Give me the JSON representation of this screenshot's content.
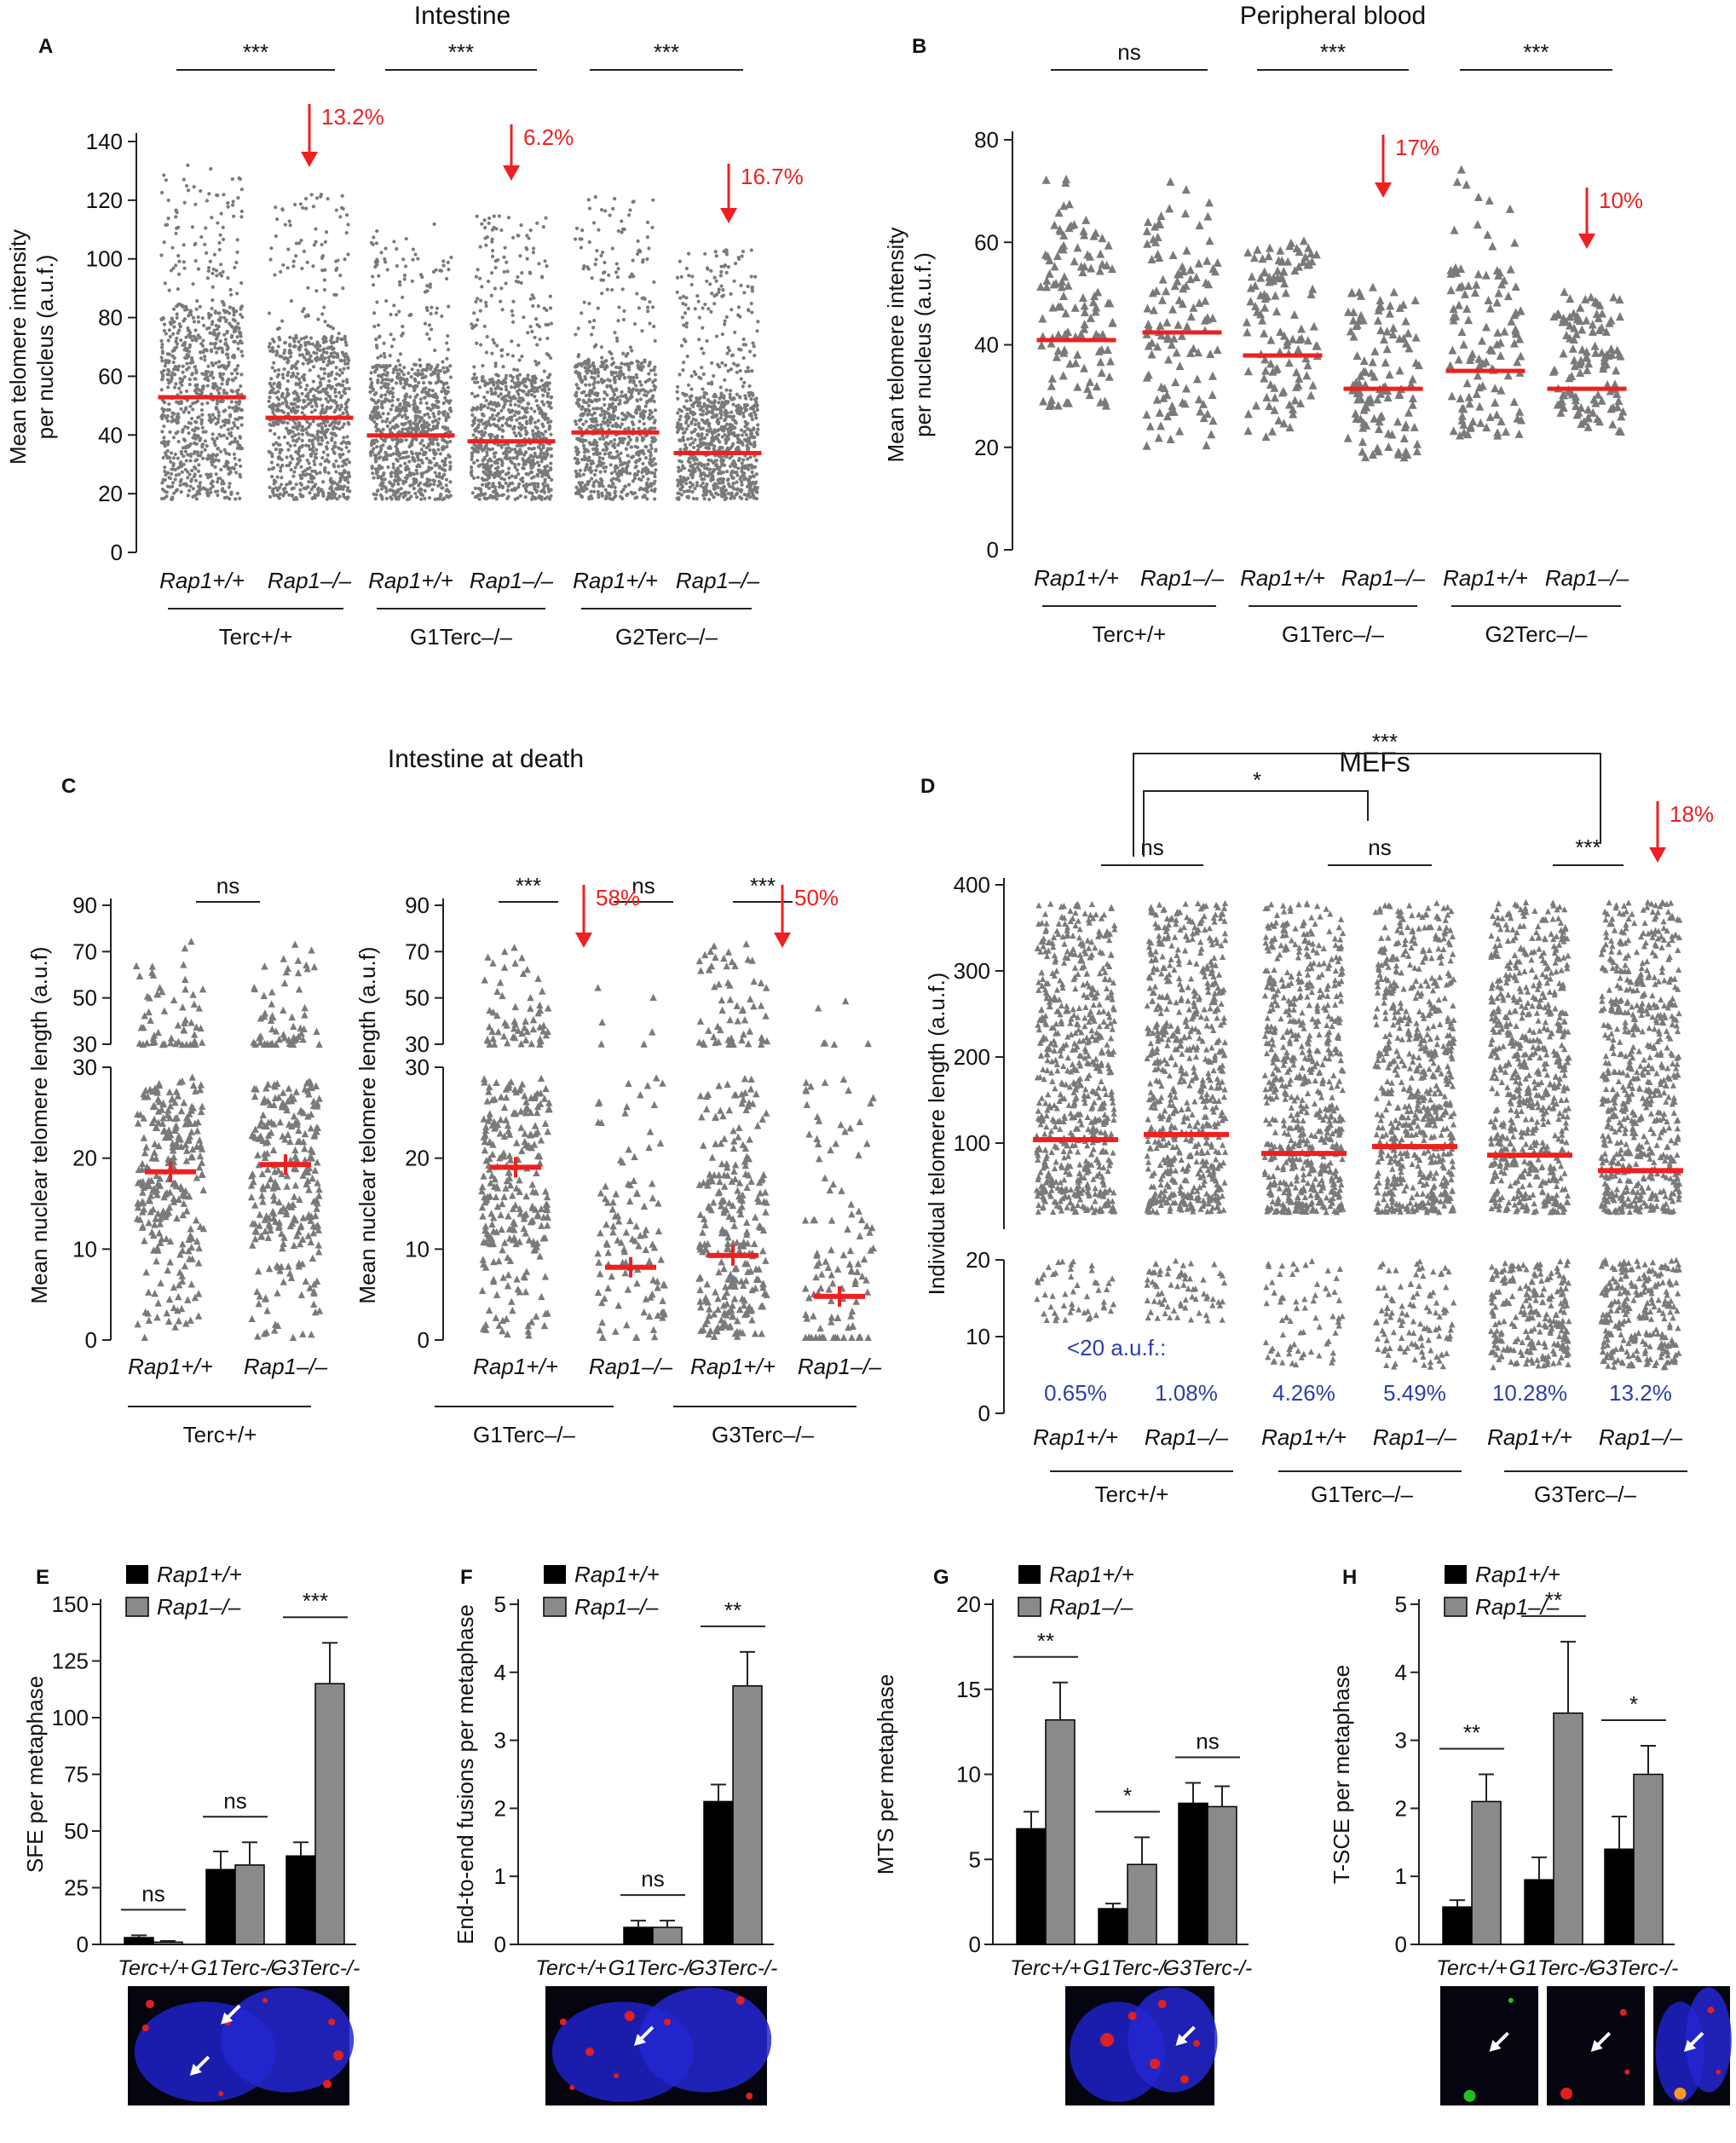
{
  "colors": {
    "dot": "#7a7a7a",
    "red": "#ee2020",
    "black": "#000000",
    "gray": "#8a8a8a",
    "blue": "#2a3fa8",
    "axis": "#222222"
  },
  "chart_data": [
    {
      "id": "A",
      "type": "scatter",
      "title": "Intestine",
      "ylabel": "Mean telomere intensity per nucleus (a.u.f.)",
      "ylim": [
        0,
        140
      ],
      "yticks": [
        0,
        20,
        40,
        60,
        80,
        100,
        120,
        140
      ],
      "categories": [
        "Rap1+/+",
        "Rap1–/–",
        "Rap1+/+",
        "Rap1–/–",
        "Rap1+/+",
        "Rap1–/–"
      ],
      "groups": [
        "Terc+/+",
        "G1Terc–/–",
        "G2Terc–/–"
      ],
      "means": [
        53,
        46,
        40,
        38,
        41,
        34
      ],
      "ranges": [
        [
          18,
          132
        ],
        [
          18,
          122
        ],
        [
          18,
          112
        ],
        [
          18,
          115
        ],
        [
          18,
          122
        ],
        [
          18,
          103
        ]
      ],
      "significance": [
        "***",
        "***",
        "***"
      ],
      "annotations": [
        "13.2%",
        "6.2%",
        "16.7%"
      ]
    },
    {
      "id": "B",
      "type": "scatter",
      "title": "Peripheral blood",
      "ylabel": "Mean telomere intensity per nucleus (a.u.f.)",
      "ylim": [
        0,
        80
      ],
      "yticks": [
        0,
        20,
        40,
        60,
        80
      ],
      "categories": [
        "Rap1+/+",
        "Rap1–/–",
        "Rap1+/+",
        "Rap1–/–",
        "Rap1+/+",
        "Rap1–/–"
      ],
      "groups": [
        "Terc+/+",
        "G1Terc–/–",
        "G2Terc–/–"
      ],
      "means": [
        41,
        42.5,
        38,
        31.5,
        35,
        31.5
      ],
      "ranges": [
        [
          28,
          74
        ],
        [
          20,
          72
        ],
        [
          22,
          61
        ],
        [
          18,
          55
        ],
        [
          22,
          76
        ],
        [
          23,
          51
        ]
      ],
      "significance": [
        "ns",
        "***",
        "***"
      ],
      "annotations": [
        "17%",
        "10%"
      ]
    },
    {
      "id": "C",
      "type": "scatter",
      "title": "Intestine at death",
      "ylabel": "Mean nuclear telomere length (a.u.f)",
      "ylabel_right": "Mean nuclear telomere length (a.u.f)",
      "yticks_lower": [
        0,
        10,
        20,
        30
      ],
      "yticks_upper": [
        30,
        50,
        70,
        90
      ],
      "categories": [
        "Rap1+/+",
        "Rap1–/–",
        "Rap1+/+",
        "Rap1–/–",
        "Rap1+/+",
        "Rap1–/–"
      ],
      "groups": [
        "Terc+/+",
        "G1Terc–/–",
        "G3Terc–/–"
      ],
      "means": [
        18.5,
        19.3,
        19,
        8,
        9.3,
        4.8
      ],
      "significance": [
        "ns",
        "***",
        "ns",
        "***"
      ],
      "annotations": [
        "58%",
        "50%"
      ]
    },
    {
      "id": "D",
      "type": "scatter",
      "title": "MEFs",
      "ylabel": "Individual telomere length (a.u.f.)",
      "yticks_lower": [
        0,
        10,
        20
      ],
      "yticks_upper": [
        100,
        200,
        300,
        400
      ],
      "categories": [
        "Rap1+/+",
        "Rap1–/–",
        "Rap1+/+",
        "Rap1–/–",
        "Rap1+/+",
        "Rap1–/–"
      ],
      "groups": [
        "Terc+/+",
        "G1Terc–/–",
        "G3Terc–/–"
      ],
      "means": [
        104,
        110,
        88,
        96,
        86,
        68
      ],
      "below20_label": "<20 a.u.f.:",
      "below20": [
        "0.65%",
        "1.08%",
        "4.26%",
        "5.49%",
        "10.28%",
        "13.2%"
      ],
      "significance": [
        "ns",
        "ns",
        "***",
        "*",
        "***"
      ],
      "annotations": [
        "18%"
      ]
    },
    {
      "id": "E",
      "type": "bar",
      "ylabel": "SFE per metaphase",
      "ylim": [
        0,
        150
      ],
      "yticks": [
        0,
        25,
        50,
        75,
        100,
        125,
        150
      ],
      "categories": [
        "Terc+/+",
        "G1Terc-/-",
        "G3Terc-/-"
      ],
      "series": [
        {
          "name": "Rap1+/+",
          "values": [
            3,
            33,
            39
          ],
          "errors": [
            1,
            8,
            6
          ]
        },
        {
          "name": "Rap1–/–",
          "values": [
            1,
            35,
            115
          ],
          "errors": [
            0.5,
            10,
            18
          ]
        }
      ],
      "significance": [
        "ns",
        "ns",
        "***"
      ]
    },
    {
      "id": "F",
      "type": "bar",
      "ylabel": "End-to-end fusions per metaphase",
      "ylim": [
        0,
        5
      ],
      "yticks": [
        0,
        1,
        2,
        3,
        4,
        5
      ],
      "categories": [
        "Terc+/+",
        "G1Terc-/-",
        "G3Terc-/-"
      ],
      "series": [
        {
          "name": "Rap1+/+",
          "values": [
            0,
            0.25,
            2.1
          ],
          "errors": [
            0,
            0.1,
            0.25
          ]
        },
        {
          "name": "Rap1–/–",
          "values": [
            0,
            0.25,
            3.8
          ],
          "errors": [
            0,
            0.1,
            0.5
          ]
        }
      ],
      "significance": [
        "",
        "ns",
        "**"
      ]
    },
    {
      "id": "G",
      "type": "bar",
      "ylabel": "MTS per metaphase",
      "ylim": [
        0,
        20
      ],
      "yticks": [
        0,
        5,
        10,
        15,
        20
      ],
      "categories": [
        "Terc+/+",
        "G1Terc-/-",
        "G3Terc-/-"
      ],
      "series": [
        {
          "name": "Rap1+/+",
          "values": [
            6.8,
            2.1,
            8.3
          ],
          "errors": [
            1,
            0.3,
            1.2
          ]
        },
        {
          "name": "Rap1–/–",
          "values": [
            13.2,
            4.7,
            8.1
          ],
          "errors": [
            2.2,
            1.6,
            1.2
          ]
        }
      ],
      "significance": [
        "**",
        "*",
        "ns"
      ]
    },
    {
      "id": "H",
      "type": "bar",
      "ylabel": "T-SCE per metaphase",
      "ylim": [
        0,
        5
      ],
      "yticks": [
        0,
        1,
        2,
        3,
        4,
        5
      ],
      "categories": [
        "Terc+/+",
        "G1Terc-/-",
        "G3Terc-/-"
      ],
      "series": [
        {
          "name": "Rap1+/+",
          "values": [
            0.55,
            0.95,
            1.4
          ],
          "errors": [
            0.1,
            0.33,
            0.48
          ]
        },
        {
          "name": "Rap1–/–",
          "values": [
            2.1,
            3.4,
            2.5
          ],
          "errors": [
            0.4,
            1.05,
            0.42
          ]
        }
      ],
      "significance": [
        "**",
        "**",
        "*"
      ]
    }
  ]
}
